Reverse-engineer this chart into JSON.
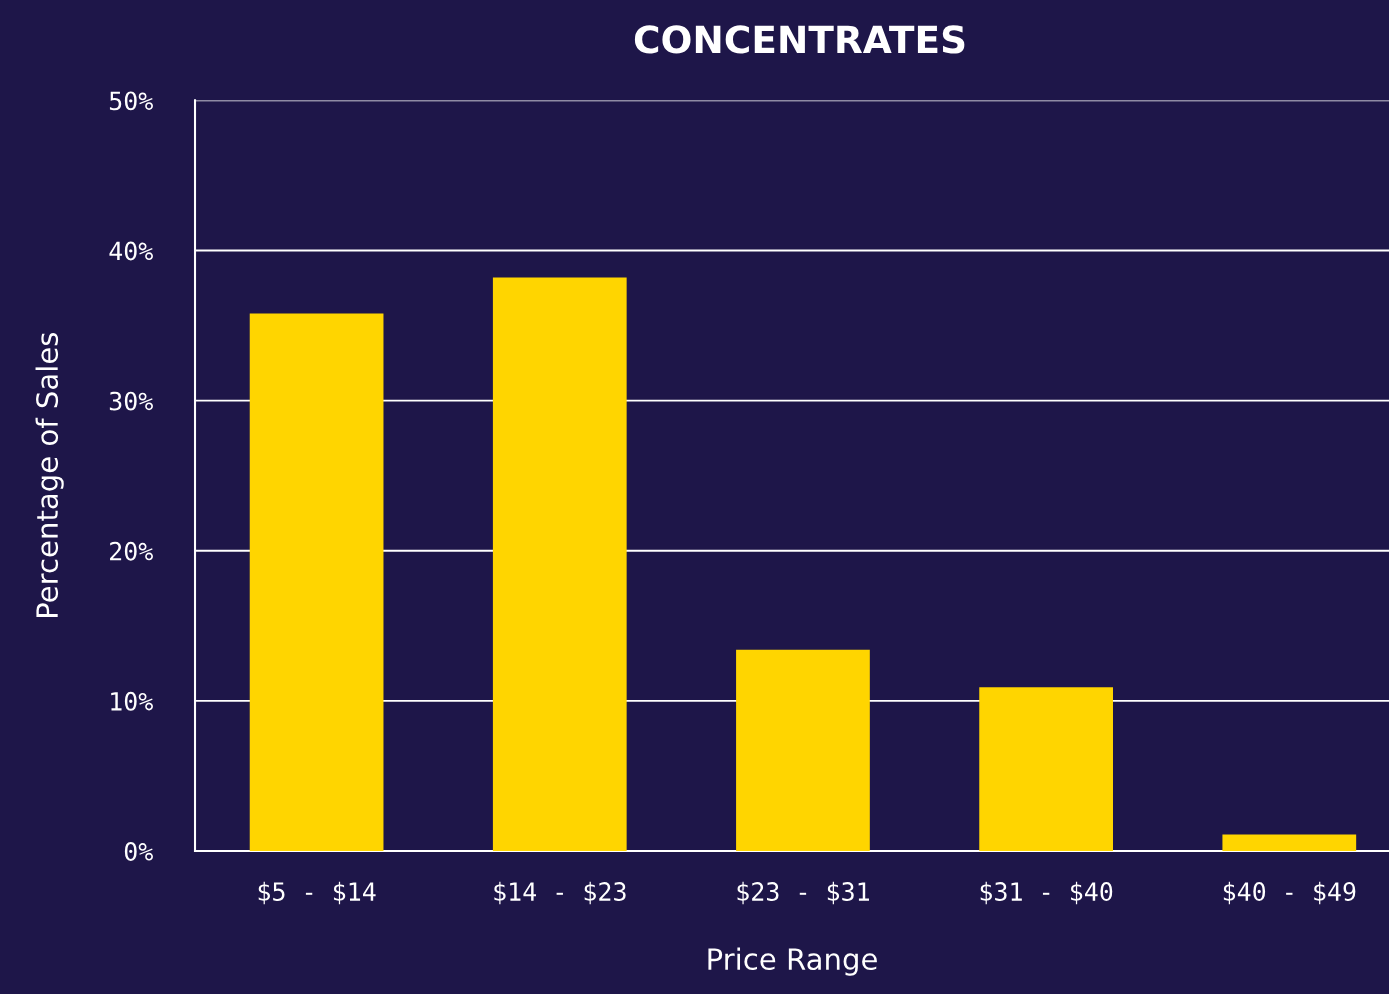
{
  "chart_data": {
    "type": "bar",
    "title": "CONCENTRATES",
    "xlabel": "Price Range",
    "ylabel": "Percentage of Sales",
    "categories": [
      "$5 - $14",
      "$14 - $23",
      "$23 - $31",
      "$31 - $40",
      "$40 - $49"
    ],
    "values": [
      35.8,
      38.2,
      13.4,
      10.9,
      1.1
    ],
    "color": "#ffd500",
    "ylim": [
      0,
      50
    ],
    "yticks": [
      {
        "value": 0,
        "label": "0%"
      },
      {
        "value": 10,
        "label": "10%"
      },
      {
        "value": 20,
        "label": "20%"
      },
      {
        "value": 30,
        "label": "30%"
      },
      {
        "value": 40,
        "label": "40%"
      },
      {
        "value": 50,
        "label": "50%"
      }
    ],
    "grid": "y",
    "legend": false
  }
}
